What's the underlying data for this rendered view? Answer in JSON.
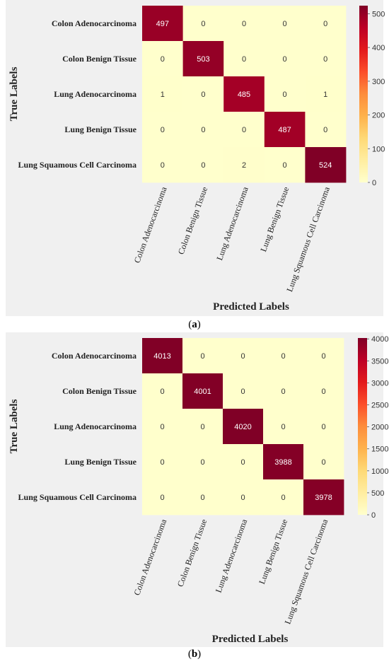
{
  "figure": {
    "captions": [
      "(a)",
      "(b)"
    ]
  },
  "chart_data": [
    {
      "type": "heatmap",
      "xlabel": "Predicted Labels",
      "ylabel": "True Labels",
      "x_categories": [
        "Colon Adenocarcinoma",
        "Colon Benign Tissue",
        "Lung Adenocarcinoma",
        "Lung Benign Tissue",
        "Lung Squamous Cell Carcinoma"
      ],
      "y_categories": [
        "Colon Adenocarcinoma",
        "Colon Benign Tissue",
        "Lung Adenocarcinoma",
        "Lung Benign Tissue",
        "Lung Squamous Cell Carcinoma"
      ],
      "values": [
        [
          497,
          0,
          0,
          0,
          0
        ],
        [
          0,
          503,
          0,
          0,
          0
        ],
        [
          1,
          0,
          485,
          0,
          1
        ],
        [
          0,
          0,
          0,
          487,
          0
        ],
        [
          0,
          0,
          2,
          0,
          524
        ]
      ],
      "colorbar": {
        "min": 0,
        "max": 524,
        "ticks": [
          0,
          100,
          200,
          300,
          400,
          500
        ]
      },
      "colormap": [
        "#ffffcc",
        "#ffeda0",
        "#fed976",
        "#feb24c",
        "#fd8d3c",
        "#fc4e2a",
        "#e31a1c",
        "#bd0026",
        "#800026"
      ]
    },
    {
      "type": "heatmap",
      "xlabel": "Predicted Labels",
      "ylabel": "True Labels",
      "x_categories": [
        "Colon Adenocarcinoma",
        "Colon Benign Tissue",
        "Lung Adenocarcinoma",
        "Lung Benign Tissue",
        "Lung Squamous Cell Carcinoma"
      ],
      "y_categories": [
        "Colon Adenocarcinoma",
        "Colon Benign Tissue",
        "Lung Adenocarcinoma",
        "Lung Benign Tissue",
        "Lung Squamous Cell Carcinoma"
      ],
      "values": [
        [
          4013,
          0,
          0,
          0,
          0
        ],
        [
          0,
          4001,
          0,
          0,
          0
        ],
        [
          0,
          0,
          4020,
          0,
          0
        ],
        [
          0,
          0,
          0,
          3988,
          0
        ],
        [
          0,
          0,
          0,
          0,
          3978
        ]
      ],
      "colorbar": {
        "min": 0,
        "max": 4020,
        "ticks": [
          0,
          500,
          1000,
          1500,
          2000,
          2500,
          3000,
          3500,
          4000
        ]
      },
      "colormap": [
        "#ffffcc",
        "#ffeda0",
        "#fed976",
        "#feb24c",
        "#fd8d3c",
        "#fc4e2a",
        "#e31a1c",
        "#bd0026",
        "#800026"
      ]
    }
  ]
}
